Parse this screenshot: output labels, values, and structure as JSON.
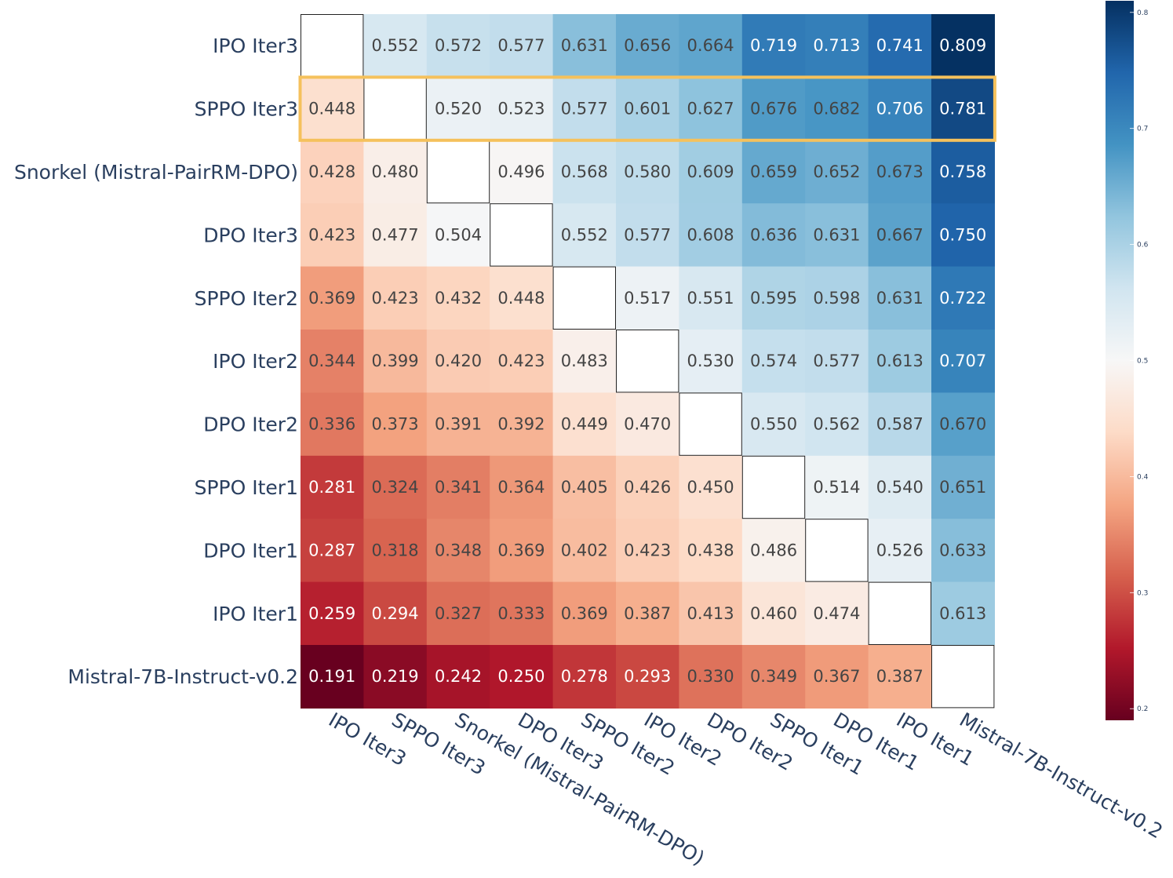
{
  "chart_data": {
    "type": "heatmap",
    "title": "",
    "xlabel": "",
    "ylabel": "",
    "labels": [
      "IPO Iter3",
      "SPPO Iter3",
      "Snorkel (Mistral-PairRM-DPO)",
      "DPO Iter3",
      "SPPO Iter2",
      "IPO Iter2",
      "DPO Iter2",
      "SPPO Iter1",
      "DPO Iter1",
      "IPO Iter1",
      "Mistral-7B-Instruct-v0.2"
    ],
    "values": [
      [
        null,
        0.552,
        0.572,
        0.577,
        0.631,
        0.656,
        0.664,
        0.719,
        0.713,
        0.741,
        0.809
      ],
      [
        0.448,
        null,
        0.52,
        0.523,
        0.577,
        0.601,
        0.627,
        0.676,
        0.682,
        0.706,
        0.781
      ],
      [
        0.428,
        0.48,
        null,
        0.496,
        0.568,
        0.58,
        0.609,
        0.659,
        0.652,
        0.673,
        0.758
      ],
      [
        0.423,
        0.477,
        0.504,
        null,
        0.552,
        0.577,
        0.608,
        0.636,
        0.631,
        0.667,
        0.75
      ],
      [
        0.369,
        0.423,
        0.432,
        0.448,
        null,
        0.517,
        0.551,
        0.595,
        0.598,
        0.631,
        0.722
      ],
      [
        0.344,
        0.399,
        0.42,
        0.423,
        0.483,
        null,
        0.53,
        0.574,
        0.577,
        0.613,
        0.707
      ],
      [
        0.336,
        0.373,
        0.391,
        0.392,
        0.449,
        0.47,
        null,
        0.55,
        0.562,
        0.587,
        0.67
      ],
      [
        0.281,
        0.324,
        0.341,
        0.364,
        0.405,
        0.426,
        0.45,
        null,
        0.514,
        0.54,
        0.651
      ],
      [
        0.287,
        0.318,
        0.348,
        0.369,
        0.402,
        0.423,
        0.438,
        0.486,
        null,
        0.526,
        0.633
      ],
      [
        0.259,
        0.294,
        0.327,
        0.333,
        0.369,
        0.387,
        0.413,
        0.46,
        0.474,
        null,
        0.613
      ],
      [
        0.191,
        0.219,
        0.242,
        0.25,
        0.278,
        0.293,
        0.33,
        0.349,
        0.367,
        0.387,
        null
      ]
    ],
    "highlighted_row": "SPPO Iter3",
    "colorscale": "RdBu",
    "zrange": [
      0.19,
      0.81
    ],
    "colorbar_ticks": [
      "0.2",
      "0.3",
      "0.4",
      "0.5",
      "0.6",
      "0.7",
      "0.8"
    ],
    "highlight_color": "#f5c15c",
    "grid": false
  }
}
